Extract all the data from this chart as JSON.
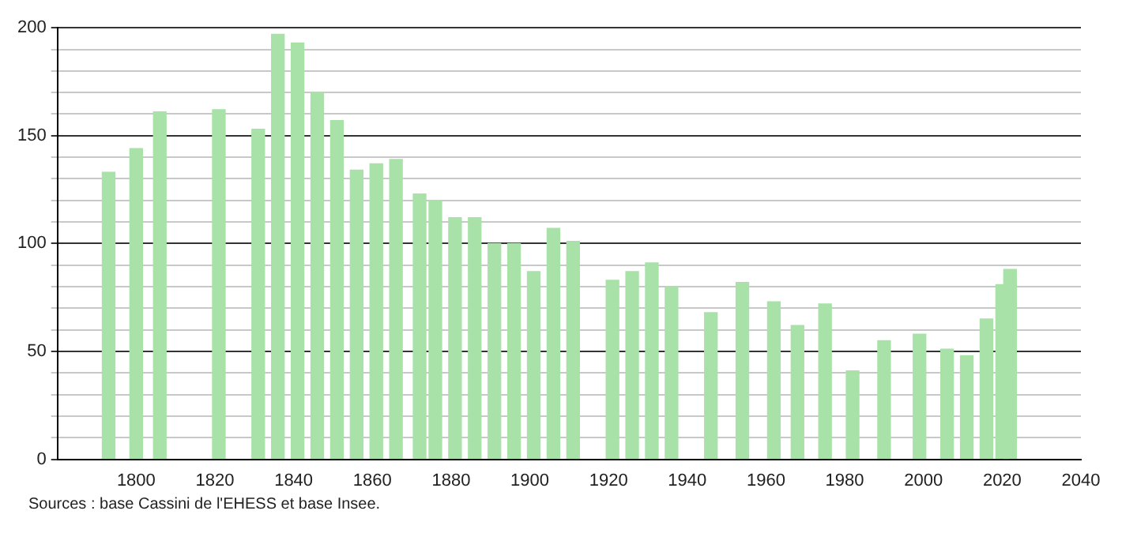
{
  "chart_data": {
    "type": "bar",
    "x": [
      1793,
      1800,
      1806,
      1821,
      1831,
      1836,
      1841,
      1846,
      1851,
      1856,
      1861,
      1866,
      1872,
      1876,
      1881,
      1886,
      1891,
      1896,
      1901,
      1906,
      1911,
      1921,
      1926,
      1931,
      1936,
      1946,
      1954,
      1962,
      1968,
      1975,
      1982,
      1990,
      1999,
      2006,
      2011,
      2016,
      2020,
      2022
    ],
    "values": [
      133,
      144,
      161,
      162,
      153,
      197,
      193,
      170,
      157,
      134,
      137,
      139,
      123,
      120,
      112,
      112,
      100,
      100,
      87,
      107,
      101,
      83,
      87,
      91,
      80,
      68,
      82,
      73,
      62,
      72,
      41,
      55,
      58,
      51,
      48,
      65,
      81,
      88
    ],
    "color": "#a8e2a8",
    "xlim": [
      1780,
      2040
    ],
    "xticks": [
      1800,
      1820,
      1840,
      1860,
      1880,
      1900,
      1920,
      1940,
      1960,
      1980,
      2000,
      2020,
      2040
    ],
    "ylim": [
      0,
      200
    ],
    "yticks": [
      0,
      {
        "value": 10,
        "label": null
      },
      {
        "value": 20,
        "label": null
      },
      {
        "value": 30,
        "label": null
      },
      {
        "value": 40,
        "label": null
      },
      50,
      {
        "value": 60,
        "label": null
      },
      {
        "value": 70,
        "label": null
      },
      {
        "value": 80,
        "label": null
      },
      {
        "value": 90,
        "label": null
      },
      100,
      {
        "value": 110,
        "label": null
      },
      {
        "value": 120,
        "label": null
      },
      {
        "value": 130,
        "label": null
      },
      {
        "value": 140,
        "label": null
      },
      150,
      {
        "value": 160,
        "label": null
      },
      {
        "value": 170,
        "label": null
      },
      {
        "value": 180,
        "label": null
      },
      {
        "value": 190,
        "label": null
      },
      200
    ],
    "grid": "y",
    "legend": false,
    "annotations": [
      "Sources : base Cassini de l'EHESS et base Insee."
    ]
  }
}
